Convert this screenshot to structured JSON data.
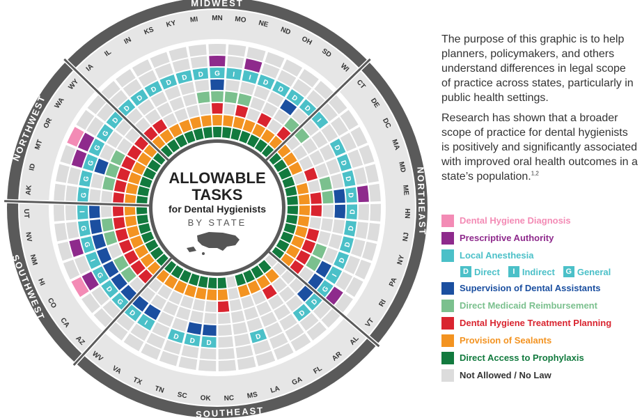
{
  "center": {
    "title_line1": "ALLOWABLE",
    "title_line2": "TASKS",
    "subtitle": "for Dental Hygienists",
    "by_state": "BY STATE",
    "map_icon": "us-map-icon"
  },
  "regions": [
    {
      "name": "MIDWEST"
    },
    {
      "name": "NORTHEAST"
    },
    {
      "name": "SOUTHEAST"
    },
    {
      "name": "SOUTHWEST"
    },
    {
      "name": "NORTHWEST"
    }
  ],
  "intro": {
    "p1": "The purpose of this graphic is to help planners, policymakers, and others understand differences in legal scope of practice across states, particularly in public health settings.",
    "p2": "Research has shown that a broader scope of practice for dental hygienists is positively and significantly associated with improved oral health outcomes in a state’s population.",
    "p2_sup": "1,2"
  },
  "legend": {
    "items": [
      {
        "label": "Dental Hygiene Diagnosis",
        "color": "#f38bb5"
      },
      {
        "label": "Prescriptive Authority",
        "color": "#8e2a8c"
      },
      {
        "label": "Local Anesthesia",
        "color": "#4bc0c8"
      },
      {
        "label": "Supervision of Dental Assistants",
        "color": "#1b4fa0"
      },
      {
        "label": "Direct Medicaid Reimbursement",
        "color": "#7bc08e"
      },
      {
        "label": "Dental Hygiene Treatment Planning",
        "color": "#d9242f"
      },
      {
        "label": "Provision of Sealants",
        "color": "#f39321"
      },
      {
        "label": "Direct Access to Prophylaxis",
        "color": "#127a3e"
      },
      {
        "label": "Not Allowed / No Law",
        "color": "#dcdcdc"
      }
    ],
    "anesthesia_levels": [
      {
        "code": "D",
        "label": "Direct"
      },
      {
        "code": "I",
        "label": "Indirect"
      },
      {
        "code": "G",
        "label": "General"
      }
    ]
  },
  "colors": {
    "empty": "#dcdcdc",
    "ring_dark": "#5a5a5a",
    "ring_light": "#e6e6e6",
    "text_dark": "#333333",
    "region_text": "#ffffff"
  },
  "chart_data": {
    "type": "radial-grid",
    "ring_order": [
      "diagnosis",
      "prescriptive",
      "anesthesia",
      "supervision",
      "medicaid",
      "treatment_planning",
      "sealants",
      "prophylaxis"
    ],
    "states": [
      {
        "state": "MN",
        "diagnosis": 0,
        "prescriptive": 1,
        "anesthesia": "G",
        "supervision": 1,
        "medicaid": 1,
        "treatment_planning": 1,
        "sealants": 1,
        "prophylaxis": 1
      },
      {
        "state": "MO",
        "diagnosis": 0,
        "prescriptive": 0,
        "anesthesia": "I",
        "supervision": 0,
        "medicaid": 1,
        "treatment_planning": 0,
        "sealants": 1,
        "prophylaxis": 1
      },
      {
        "state": "NE",
        "diagnosis": 0,
        "prescriptive": 1,
        "anesthesia": "I",
        "supervision": 0,
        "medicaid": 1,
        "treatment_planning": 1,
        "sealants": 1,
        "prophylaxis": 1
      },
      {
        "state": "ND",
        "diagnosis": 0,
        "prescriptive": 0,
        "anesthesia": "D",
        "supervision": 0,
        "medicaid": 0,
        "treatment_planning": 0,
        "sealants": 1,
        "prophylaxis": 1
      },
      {
        "state": "OH",
        "diagnosis": 0,
        "prescriptive": 0,
        "anesthesia": "D",
        "supervision": 0,
        "medicaid": 0,
        "treatment_planning": 1,
        "sealants": 1,
        "prophylaxis": 1
      },
      {
        "state": "SD",
        "diagnosis": 0,
        "prescriptive": 0,
        "anesthesia": "D",
        "supervision": 1,
        "medicaid": 0,
        "treatment_planning": 0,
        "sealants": 1,
        "prophylaxis": 1
      },
      {
        "state": "WI",
        "diagnosis": 0,
        "prescriptive": 0,
        "anesthesia": "D",
        "supervision": 0,
        "medicaid": 1,
        "treatment_planning": 1,
        "sealants": 1,
        "prophylaxis": 1
      },
      {
        "state": "CT",
        "diagnosis": 0,
        "prescriptive": 0,
        "anesthesia": "I",
        "supervision": 0,
        "medicaid": 1,
        "treatment_planning": 0,
        "sealants": 1,
        "prophylaxis": 1
      },
      {
        "state": "DE",
        "diagnosis": 0,
        "prescriptive": 0,
        "anesthesia": "0",
        "supervision": 0,
        "medicaid": 0,
        "treatment_planning": 0,
        "sealants": 1,
        "prophylaxis": 1
      },
      {
        "state": "DC",
        "diagnosis": 0,
        "prescriptive": 0,
        "anesthesia": "D",
        "supervision": 0,
        "medicaid": 0,
        "treatment_planning": 0,
        "sealants": 1,
        "prophylaxis": 1
      },
      {
        "state": "MA",
        "diagnosis": 0,
        "prescriptive": 0,
        "anesthesia": "D",
        "supervision": 0,
        "medicaid": 0,
        "treatment_planning": 1,
        "sealants": 0,
        "prophylaxis": 1
      },
      {
        "state": "MD",
        "diagnosis": 0,
        "prescriptive": 0,
        "anesthesia": "D",
        "supervision": 0,
        "medicaid": 1,
        "treatment_planning": 0,
        "sealants": 1,
        "prophylaxis": 1
      },
      {
        "state": "ME",
        "diagnosis": 0,
        "prescriptive": 1,
        "anesthesia": "D",
        "supervision": 1,
        "medicaid": 1,
        "treatment_planning": 1,
        "sealants": 1,
        "prophylaxis": 1
      },
      {
        "state": "NH",
        "diagnosis": 0,
        "prescriptive": 0,
        "anesthesia": "D",
        "supervision": 1,
        "medicaid": 0,
        "treatment_planning": 1,
        "sealants": 1,
        "prophylaxis": 1
      },
      {
        "state": "NJ",
        "diagnosis": 0,
        "prescriptive": 0,
        "anesthesia": "D",
        "supervision": 0,
        "medicaid": 0,
        "treatment_planning": 0,
        "sealants": 1,
        "prophylaxis": 1
      },
      {
        "state": "NY",
        "diagnosis": 0,
        "prescriptive": 0,
        "anesthesia": "D",
        "supervision": 0,
        "medicaid": 0,
        "treatment_planning": 1,
        "sealants": 1,
        "prophylaxis": 1
      },
      {
        "state": "PA",
        "diagnosis": 0,
        "prescriptive": 0,
        "anesthesia": "D",
        "supervision": 0,
        "medicaid": 1,
        "treatment_planning": 1,
        "sealants": 1,
        "prophylaxis": 1
      },
      {
        "state": "RI",
        "diagnosis": 0,
        "prescriptive": 0,
        "anesthesia": "I",
        "supervision": 1,
        "medicaid": 1,
        "treatment_planning": 1,
        "sealants": 1,
        "prophylaxis": 1
      },
      {
        "state": "VT",
        "diagnosis": 0,
        "prescriptive": 1,
        "anesthesia": "G",
        "supervision": 1,
        "medicaid": 0,
        "treatment_planning": 1,
        "sealants": 1,
        "prophylaxis": 1
      },
      {
        "state": "AL",
        "diagnosis": 0,
        "prescriptive": 0,
        "anesthesia": "D",
        "supervision": 1,
        "medicaid": 0,
        "treatment_planning": 0,
        "sealants": 0,
        "prophylaxis": 0
      },
      {
        "state": "AR",
        "diagnosis": 0,
        "prescriptive": 0,
        "anesthesia": "D",
        "supervision": 0,
        "medicaid": 0,
        "treatment_planning": 0,
        "sealants": 1,
        "prophylaxis": 1
      },
      {
        "state": "FL",
        "diagnosis": 0,
        "prescriptive": 0,
        "anesthesia": "0",
        "supervision": 0,
        "medicaid": 0,
        "treatment_planning": 1,
        "sealants": 1,
        "prophylaxis": 1
      },
      {
        "state": "GA",
        "diagnosis": 0,
        "prescriptive": 0,
        "anesthesia": "0",
        "supervision": 0,
        "medicaid": 0,
        "treatment_planning": 0,
        "sealants": 1,
        "prophylaxis": 1
      },
      {
        "state": "LA",
        "diagnosis": 0,
        "prescriptive": 0,
        "anesthesia": "D",
        "supervision": 0,
        "medicaid": 0,
        "treatment_planning": 0,
        "sealants": 1,
        "prophylaxis": 1
      },
      {
        "state": "MS",
        "diagnosis": 0,
        "prescriptive": 0,
        "anesthesia": "0",
        "supervision": 0,
        "medicaid": 0,
        "treatment_planning": 0,
        "sealants": 0,
        "prophylaxis": 0
      },
      {
        "state": "NC",
        "diagnosis": 0,
        "prescriptive": 0,
        "anesthesia": "0",
        "supervision": 0,
        "medicaid": 0,
        "treatment_planning": 1,
        "sealants": 1,
        "prophylaxis": 1
      },
      {
        "state": "OK",
        "diagnosis": 0,
        "prescriptive": 0,
        "anesthesia": "D",
        "supervision": 1,
        "medicaid": 0,
        "treatment_planning": 0,
        "sealants": 1,
        "prophylaxis": 1
      },
      {
        "state": "SC",
        "diagnosis": 0,
        "prescriptive": 0,
        "anesthesia": "D",
        "supervision": 1,
        "medicaid": 0,
        "treatment_planning": 0,
        "sealants": 1,
        "prophylaxis": 1
      },
      {
        "state": "TN",
        "diagnosis": 0,
        "prescriptive": 0,
        "anesthesia": "D",
        "supervision": 0,
        "medicaid": 0,
        "treatment_planning": 0,
        "sealants": 1,
        "prophylaxis": 1
      },
      {
        "state": "TX",
        "diagnosis": 0,
        "prescriptive": 0,
        "anesthesia": "0",
        "supervision": 0,
        "medicaid": 0,
        "treatment_planning": 0,
        "sealants": 1,
        "prophylaxis": 1
      },
      {
        "state": "VA",
        "diagnosis": 0,
        "prescriptive": 0,
        "anesthesia": "I",
        "supervision": 1,
        "medicaid": 0,
        "treatment_planning": 0,
        "sealants": 1,
        "prophylaxis": 1
      },
      {
        "state": "WV",
        "diagnosis": 0,
        "prescriptive": 0,
        "anesthesia": "D",
        "supervision": 1,
        "medicaid": 0,
        "treatment_planning": 0,
        "sealants": 1,
        "prophylaxis": 1
      },
      {
        "state": "AZ",
        "diagnosis": 0,
        "prescriptive": 0,
        "anesthesia": "G",
        "supervision": 1,
        "medicaid": 0,
        "treatment_planning": 1,
        "sealants": 1,
        "prophylaxis": 1
      },
      {
        "state": "CA",
        "diagnosis": 0,
        "prescriptive": 0,
        "anesthesia": "D",
        "supervision": 1,
        "medicaid": 1,
        "treatment_planning": 1,
        "sealants": 1,
        "prophylaxis": 1
      },
      {
        "state": "CO",
        "diagnosis": 1,
        "prescriptive": 1,
        "anesthesia": "G",
        "supervision": 1,
        "medicaid": 1,
        "treatment_planning": 1,
        "sealants": 1,
        "prophylaxis": 1
      },
      {
        "state": "HI",
        "diagnosis": 0,
        "prescriptive": 0,
        "anesthesia": "I",
        "supervision": 1,
        "medicaid": 0,
        "treatment_planning": 1,
        "sealants": 1,
        "prophylaxis": 1
      },
      {
        "state": "NM",
        "diagnosis": 0,
        "prescriptive": 1,
        "anesthesia": "G",
        "supervision": 1,
        "medicaid": 1,
        "treatment_planning": 1,
        "sealants": 1,
        "prophylaxis": 1
      },
      {
        "state": "NV",
        "diagnosis": 0,
        "prescriptive": 0,
        "anesthesia": "G",
        "supervision": 1,
        "medicaid": 1,
        "treatment_planning": 1,
        "sealants": 1,
        "prophylaxis": 1
      },
      {
        "state": "UT",
        "diagnosis": 0,
        "prescriptive": 0,
        "anesthesia": "I",
        "supervision": 1,
        "medicaid": 0,
        "treatment_planning": 1,
        "sealants": 1,
        "prophylaxis": 1
      },
      {
        "state": "AK",
        "diagnosis": 0,
        "prescriptive": 0,
        "anesthesia": "G",
        "supervision": 0,
        "medicaid": 0,
        "treatment_planning": 1,
        "sealants": 1,
        "prophylaxis": 1
      },
      {
        "state": "ID",
        "diagnosis": 0,
        "prescriptive": 0,
        "anesthesia": "G",
        "supervision": 0,
        "medicaid": 1,
        "treatment_planning": 1,
        "sealants": 1,
        "prophylaxis": 1
      },
      {
        "state": "MT",
        "diagnosis": 0,
        "prescriptive": 1,
        "anesthesia": "G",
        "supervision": 1,
        "medicaid": 1,
        "treatment_planning": 1,
        "sealants": 1,
        "prophylaxis": 1
      },
      {
        "state": "OR",
        "diagnosis": 1,
        "prescriptive": 1,
        "anesthesia": "G",
        "supervision": 0,
        "medicaid": 1,
        "treatment_planning": 1,
        "sealants": 1,
        "prophylaxis": 1
      },
      {
        "state": "WA",
        "diagnosis": 0,
        "prescriptive": 0,
        "anesthesia": "G",
        "supervision": 0,
        "medicaid": 0,
        "treatment_planning": 1,
        "sealants": 1,
        "prophylaxis": 1
      },
      {
        "state": "WY",
        "diagnosis": 0,
        "prescriptive": 0,
        "anesthesia": "D",
        "supervision": 0,
        "medicaid": 0,
        "treatment_planning": 1,
        "sealants": 1,
        "prophylaxis": 1
      },
      {
        "state": "IA",
        "diagnosis": 0,
        "prescriptive": 0,
        "anesthesia": "D",
        "supervision": 0,
        "medicaid": 0,
        "treatment_planning": 1,
        "sealants": 1,
        "prophylaxis": 1
      },
      {
        "state": "IL",
        "diagnosis": 0,
        "prescriptive": 0,
        "anesthesia": "D",
        "supervision": 0,
        "medicaid": 0,
        "treatment_planning": 1,
        "sealants": 1,
        "prophylaxis": 1
      },
      {
        "state": "IN",
        "diagnosis": 0,
        "prescriptive": 0,
        "anesthesia": "D",
        "supervision": 0,
        "medicaid": 0,
        "treatment_planning": 0,
        "sealants": 1,
        "prophylaxis": 1
      },
      {
        "state": "KS",
        "diagnosis": 0,
        "prescriptive": 0,
        "anesthesia": "D",
        "supervision": 0,
        "medicaid": 0,
        "treatment_planning": 0,
        "sealants": 1,
        "prophylaxis": 1
      },
      {
        "state": "KY",
        "diagnosis": 0,
        "prescriptive": 0,
        "anesthesia": "D",
        "supervision": 0,
        "medicaid": 0,
        "treatment_planning": 0,
        "sealants": 1,
        "prophylaxis": 1
      },
      {
        "state": "MI",
        "diagnosis": 0,
        "prescriptive": 0,
        "anesthesia": "D",
        "supervision": 0,
        "medicaid": 1,
        "treatment_planning": 0,
        "sealants": 1,
        "prophylaxis": 1
      }
    ],
    "region_spans": [
      {
        "region": "MIDWEST",
        "from": "IA",
        "to": "WI"
      },
      {
        "region": "NORTHEAST",
        "from": "CT",
        "to": "VT"
      },
      {
        "region": "SOUTHEAST",
        "from": "AL",
        "to": "WV"
      },
      {
        "region": "SOUTHWEST",
        "from": "AZ",
        "to": "UT"
      },
      {
        "region": "NORTHWEST",
        "from": "AK",
        "to": "WY"
      }
    ]
  }
}
